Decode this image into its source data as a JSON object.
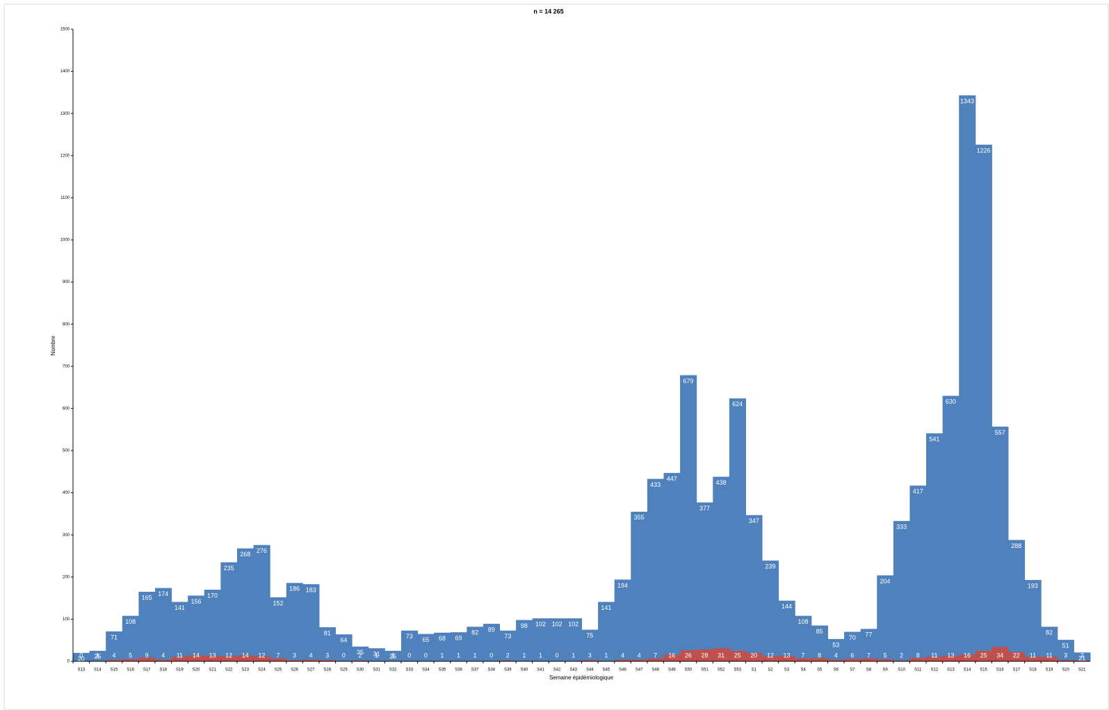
{
  "chart_data": {
    "type": "bar",
    "title": "n = 14 265",
    "y_label": "Nombre",
    "x_label": "Semaine épidémiologique",
    "categories": [
      "S13",
      "S14",
      "S15",
      "S16",
      "S17",
      "S18",
      "S19",
      "S20",
      "S21",
      "S22",
      "S23",
      "S24",
      "S25",
      "S26",
      "S27",
      "S28",
      "S29",
      "S30",
      "S31",
      "S32",
      "S33",
      "S34",
      "S35",
      "S36",
      "S37",
      "S38",
      "S39",
      "S40",
      "S41",
      "S42",
      "S43",
      "S44",
      "S45",
      "S46",
      "S47",
      "S48",
      "S49",
      "S50",
      "S51",
      "S52",
      "S53",
      "S1",
      "S2",
      "S3",
      "S4",
      "S5",
      "S6",
      "S7",
      "S8",
      "S9",
      "S10",
      "S11",
      "S12",
      "S13",
      "S14",
      "S15",
      "S16",
      "S17",
      "S18",
      "S19",
      "S20",
      "S21"
    ],
    "series": [
      {
        "color": "#4f81bd",
        "values": [
          20,
          25,
          71,
          108,
          165,
          174,
          141,
          156,
          170,
          235,
          268,
          276,
          152,
          186,
          183,
          81,
          64,
          35,
          31,
          25,
          73,
          65,
          68,
          69,
          82,
          89,
          73,
          98,
          102,
          102,
          102,
          75,
          141,
          194,
          355,
          433,
          447,
          679,
          377,
          438,
          624,
          347,
          239,
          144,
          108,
          85,
          53,
          70,
          77,
          204,
          333,
          417,
          541,
          630,
          1343,
          1226,
          557,
          288,
          193,
          82,
          51,
          21
        ]
      },
      {
        "color": "#c0504d",
        "values": [
          0,
          1,
          4,
          5,
          9,
          4,
          11,
          14,
          13,
          12,
          14,
          12,
          7,
          3,
          4,
          3,
          0,
          2,
          1,
          1,
          0,
          0,
          1,
          1,
          1,
          0,
          2,
          1,
          1,
          0,
          1,
          3,
          1,
          4,
          4,
          7,
          16,
          26,
          28,
          31,
          25,
          20,
          12,
          13,
          7,
          8,
          4,
          6,
          7,
          5,
          2,
          8,
          11,
          13,
          16,
          25,
          34,
          22,
          11,
          11,
          3,
          2
        ]
      }
    ],
    "ylim": [
      0,
      1500
    ],
    "yticks": [
      0,
      100,
      200,
      300,
      400,
      500,
      600,
      700,
      800,
      900,
      1000,
      1100,
      1200,
      1300,
      1400,
      1500
    ],
    "grid": false
  }
}
